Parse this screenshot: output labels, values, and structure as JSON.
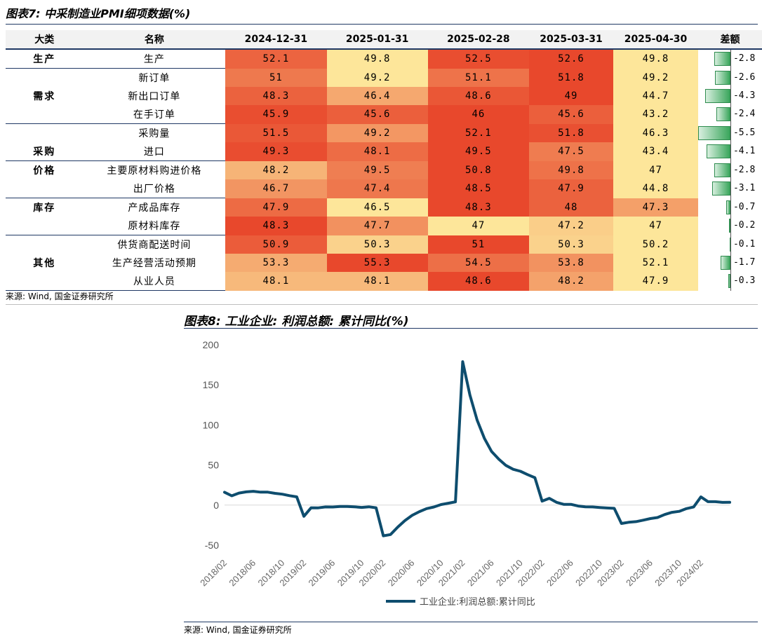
{
  "table": {
    "title": "图表7: 中采制造业PMI细项数据(%)",
    "headers": [
      "大类",
      "名称",
      "2024-12-31",
      "2025-01-31",
      "2025-02-28",
      "2025-03-31",
      "2025-04-30",
      "差额"
    ],
    "rows": [
      {
        "cat": "生产",
        "name": "生产",
        "values": [
          "52.1",
          "49.8",
          "52.5",
          "52.6",
          "49.8"
        ],
        "diff": "-2.8"
      },
      {
        "cat": "",
        "name": "新订单",
        "values": [
          "51",
          "49.2",
          "51.1",
          "51.8",
          "49.2"
        ],
        "diff": "-2.6"
      },
      {
        "cat": "需求",
        "name": "新出口订单",
        "values": [
          "48.3",
          "46.4",
          "48.6",
          "49",
          "44.7"
        ],
        "diff": "-4.3"
      },
      {
        "cat": "",
        "name": "在手订单",
        "values": [
          "45.9",
          "45.6",
          "46",
          "45.6",
          "43.2"
        ],
        "diff": "-2.4"
      },
      {
        "cat": "",
        "name": "采购量",
        "values": [
          "51.5",
          "49.2",
          "52.1",
          "51.8",
          "46.3"
        ],
        "diff": "-5.5"
      },
      {
        "cat": "采购",
        "name": "进口",
        "values": [
          "49.3",
          "48.1",
          "49.5",
          "47.5",
          "43.4"
        ],
        "diff": "-4.1"
      },
      {
        "cat": "价格",
        "name": "主要原材料购进价格",
        "values": [
          "48.2",
          "49.5",
          "50.8",
          "49.8",
          "47"
        ],
        "diff": "-2.8"
      },
      {
        "cat": "",
        "name": "出厂价格",
        "values": [
          "46.7",
          "47.4",
          "48.5",
          "47.9",
          "44.8"
        ],
        "diff": "-3.1"
      },
      {
        "cat": "库存",
        "name": "产成品库存",
        "values": [
          "47.9",
          "46.5",
          "48.3",
          "48",
          "47.3"
        ],
        "diff": "-0.7"
      },
      {
        "cat": "",
        "name": "原材料库存",
        "values": [
          "48.3",
          "47.7",
          "47",
          "47.2",
          "47"
        ],
        "diff": "-0.2"
      },
      {
        "cat": "",
        "name": "供货商配送时间",
        "values": [
          "50.9",
          "50.3",
          "51",
          "50.3",
          "50.2"
        ],
        "diff": "-0.1"
      },
      {
        "cat": "其他",
        "name": "生产经营活动预期",
        "values": [
          "53.3",
          "55.3",
          "54.5",
          "53.8",
          "52.1"
        ],
        "diff": "-1.7"
      },
      {
        "cat": "",
        "name": "从业人员",
        "values": [
          "48.1",
          "48.1",
          "48.6",
          "48.2",
          "47.9"
        ],
        "diff": "-0.3"
      }
    ],
    "source": "来源: Wind, 国金证券研究所"
  },
  "chart2": {
    "title": "图表8: 工业企业: 利润总额: 累计同比(%)",
    "source": "来源: Wind, 国金证券研究所"
  },
  "colors": {
    "line": "#0e4d6e",
    "hot": "#e8482c",
    "cool": "#fde69a",
    "bar": "#3aa65c"
  },
  "chart_data": [
    {
      "type": "table",
      "title": "图表7: 中采制造业PMI细项数据(%)",
      "columns": [
        "大类",
        "名称",
        "2024-12-31",
        "2025-01-31",
        "2025-02-28",
        "2025-03-31",
        "2025-04-30",
        "差额"
      ]
    },
    {
      "type": "line",
      "title": "图表8: 工业企业: 利润总额: 累计同比(%)",
      "xlabel": "",
      "ylabel": "",
      "ylim": [
        -50,
        200
      ],
      "yticks": [
        -50,
        0,
        50,
        100,
        150,
        200
      ],
      "xticks": [
        "2018/02",
        "2018/06",
        "2018/10",
        "2019/02",
        "2019/06",
        "2019/10",
        "2020/02",
        "2020/06",
        "2020/10",
        "2021/02",
        "2021/06",
        "2021/10",
        "2022/02",
        "2022/06",
        "2022/10",
        "2023/02",
        "2023/06",
        "2023/10",
        "2024/02"
      ],
      "grid": false,
      "legend": "bottom",
      "series": [
        {
          "name": "工业企业:利润总额:累计同比",
          "x": [
            "2018/02",
            "2018/03",
            "2018/04",
            "2018/05",
            "2018/06",
            "2018/07",
            "2018/08",
            "2018/09",
            "2018/10",
            "2018/11",
            "2018/12",
            "2019/02",
            "2019/03",
            "2019/04",
            "2019/05",
            "2019/06",
            "2019/07",
            "2019/08",
            "2019/09",
            "2019/10",
            "2019/11",
            "2019/12",
            "2020/02",
            "2020/03",
            "2020/04",
            "2020/05",
            "2020/06",
            "2020/07",
            "2020/08",
            "2020/09",
            "2020/10",
            "2020/11",
            "2020/12",
            "2021/02",
            "2021/03",
            "2021/04",
            "2021/05",
            "2021/06",
            "2021/07",
            "2021/08",
            "2021/09",
            "2021/10",
            "2021/11",
            "2021/12",
            "2022/02",
            "2022/03",
            "2022/04",
            "2022/05",
            "2022/06",
            "2022/07",
            "2022/08",
            "2022/09",
            "2022/10",
            "2022/11",
            "2022/12",
            "2023/02",
            "2023/03",
            "2023/04",
            "2023/05",
            "2023/06",
            "2023/07",
            "2023/08",
            "2023/09",
            "2023/10",
            "2023/11",
            "2023/12",
            "2024/02",
            "2024/03",
            "2024/04",
            "2024/05",
            "2024/06"
          ],
          "values": [
            16.1,
            11.6,
            15.0,
            16.5,
            17.2,
            16.2,
            16.2,
            14.7,
            13.6,
            11.8,
            10.3,
            -14.0,
            -3.3,
            -3.4,
            -2.3,
            -2.4,
            -1.7,
            -1.7,
            -2.1,
            -2.9,
            -2.1,
            -3.3,
            -38.3,
            -36.7,
            -27.4,
            -19.3,
            -12.8,
            -8.1,
            -4.4,
            -2.4,
            0.7,
            2.4,
            4.1,
            178.9,
            137.3,
            106.0,
            83.4,
            66.9,
            57.3,
            49.5,
            44.7,
            42.2,
            38.0,
            34.3,
            5.0,
            8.5,
            3.5,
            1.0,
            1.0,
            -1.1,
            -2.1,
            -2.3,
            -3.0,
            -3.6,
            -4.0,
            -22.9,
            -21.4,
            -20.6,
            -18.8,
            -16.8,
            -15.5,
            -11.7,
            -9.0,
            -7.8,
            -4.4,
            -2.3,
            10.2,
            4.3,
            4.3,
            3.4,
            3.5
          ]
        }
      ]
    }
  ]
}
